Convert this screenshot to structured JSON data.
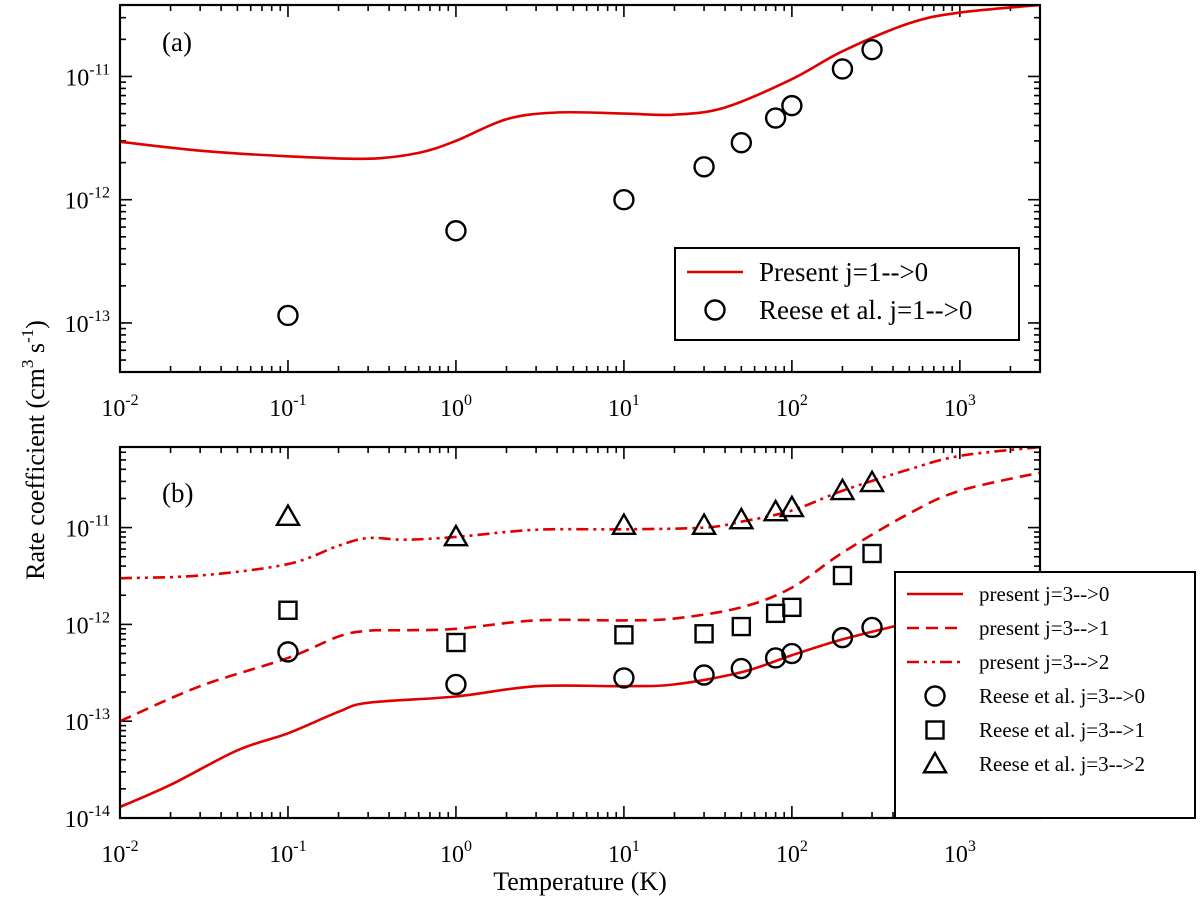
{
  "figure": {
    "ylabel": "Rate coefficient (cm",
    "ylabel_sup": "3",
    "ylabel_mid": " s",
    "ylabel_sup2": "-1",
    "ylabel_end": ")",
    "xlabel": "Temperature (K)"
  },
  "chart_data": [
    {
      "type": "line",
      "panel_label": "(a)",
      "x_scale": "log",
      "y_scale": "log",
      "xlim": [
        0.01,
        3000
      ],
      "ylim": [
        4e-14,
        3.8e-11
      ],
      "x_ticks": [
        {
          "value": 0.01,
          "base": "10",
          "exp": "-2"
        },
        {
          "value": 0.1,
          "base": "10",
          "exp": "-1"
        },
        {
          "value": 1,
          "base": "10",
          "exp": "0"
        },
        {
          "value": 10,
          "base": "10",
          "exp": "1"
        },
        {
          "value": 100,
          "base": "10",
          "exp": "2"
        },
        {
          "value": 1000,
          "base": "10",
          "exp": "3"
        }
      ],
      "y_ticks": [
        {
          "value": 1e-13,
          "base": "10",
          "exp": "-13"
        },
        {
          "value": 1e-12,
          "base": "10",
          "exp": "-12"
        },
        {
          "value": 1e-11,
          "base": "10",
          "exp": "-11"
        }
      ],
      "legend_position": "bottom-right",
      "series": [
        {
          "name": "Present j=1-->0",
          "style": "solid",
          "color": "#e00000",
          "x": [
            0.01,
            0.03,
            0.1,
            0.3,
            0.6,
            1,
            2,
            4,
            10,
            20,
            40,
            100,
            200,
            500,
            1000,
            3000
          ],
          "y": [
            2.95e-12,
            2.5e-12,
            2.25e-12,
            2.15e-12,
            2.4e-12,
            3e-12,
            4.5e-12,
            5.1e-12,
            5e-12,
            4.9e-12,
            5.6e-12,
            9.5e-12,
            1.6e-11,
            2.7e-11,
            3.3e-11,
            3.8e-11
          ]
        },
        {
          "name": "Reese et al. j=1-->0",
          "marker": "circle",
          "x": [
            0.1,
            1,
            10,
            30,
            50,
            80,
            100,
            200,
            300
          ],
          "y": [
            1.15e-13,
            5.6e-13,
            1e-12,
            1.85e-12,
            2.9e-12,
            4.6e-12,
            5.8e-12,
            1.15e-11,
            1.65e-11
          ]
        }
      ]
    },
    {
      "type": "line",
      "panel_label": "(b)",
      "x_scale": "log",
      "y_scale": "log",
      "xlim": [
        0.01,
        3000
      ],
      "ylim": [
        1e-14,
        6.8e-11
      ],
      "x_ticks": [
        {
          "value": 0.01,
          "base": "10",
          "exp": "-2"
        },
        {
          "value": 0.1,
          "base": "10",
          "exp": "-1"
        },
        {
          "value": 1,
          "base": "10",
          "exp": "0"
        },
        {
          "value": 10,
          "base": "10",
          "exp": "1"
        },
        {
          "value": 100,
          "base": "10",
          "exp": "2"
        },
        {
          "value": 1000,
          "base": "10",
          "exp": "3"
        }
      ],
      "y_ticks": [
        {
          "value": 1e-14,
          "base": "10",
          "exp": "-14"
        },
        {
          "value": 1e-13,
          "base": "10",
          "exp": "-13"
        },
        {
          "value": 1e-12,
          "base": "10",
          "exp": "-12"
        },
        {
          "value": 1e-11,
          "base": "10",
          "exp": "-11"
        }
      ],
      "legend_position": "right",
      "series": [
        {
          "name": "present j=3-->0",
          "style": "solid",
          "color": "#e00000",
          "x": [
            0.01,
            0.02,
            0.05,
            0.1,
            0.2,
            0.3,
            1,
            3,
            10,
            20,
            50,
            100,
            200,
            500,
            1000,
            3000
          ],
          "y": [
            1.3e-14,
            2.2e-14,
            5e-14,
            7.5e-14,
            1.25e-13,
            1.55e-13,
            1.8e-13,
            2.3e-13,
            2.3e-13,
            2.4e-13,
            3.2e-13,
            4.8e-13,
            7e-13,
            1.05e-12,
            1.5e-12,
            2.5e-12
          ]
        },
        {
          "name": "present j=3-->1",
          "style": "dashed",
          "color": "#e00000",
          "x": [
            0.01,
            0.03,
            0.1,
            0.2,
            0.3,
            0.5,
            1,
            3,
            10,
            20,
            50,
            100,
            200,
            500,
            1000,
            3000
          ],
          "y": [
            1e-13,
            2.3e-13,
            4.5e-13,
            7.5e-13,
            8.6e-13,
            8.7e-13,
            9e-13,
            1.1e-12,
            1.1e-12,
            1.15e-12,
            1.5e-12,
            2.4e-12,
            5.5e-12,
            1.4e-11,
            2.4e-11,
            3.7e-11
          ]
        },
        {
          "name": "present j=3-->2",
          "style": "dash-dot-dot",
          "color": "#e00000",
          "x": [
            0.01,
            0.03,
            0.1,
            0.2,
            0.3,
            0.5,
            1,
            3,
            10,
            30,
            50,
            100,
            200,
            500,
            1000,
            3000
          ],
          "y": [
            3e-12,
            3.2e-12,
            4.2e-12,
            6.5e-12,
            7.8e-12,
            7.5e-12,
            8e-12,
            9.5e-12,
            9.6e-12,
            1e-11,
            1.15e-11,
            1.5e-11,
            2.4e-11,
            4e-11,
            5.5e-11,
            6.8e-11
          ]
        },
        {
          "name": "Reese et al. j=3-->0",
          "marker": "circle",
          "x": [
            0.1,
            1,
            10,
            30,
            50,
            80,
            100,
            200,
            300
          ],
          "y": [
            5.2e-13,
            2.4e-13,
            2.8e-13,
            3e-13,
            3.5e-13,
            4.5e-13,
            5e-13,
            7.3e-13,
            9.3e-13
          ]
        },
        {
          "name": "Reese et al. j=3-->1",
          "marker": "square",
          "x": [
            0.1,
            1,
            10,
            30,
            50,
            80,
            100,
            200,
            300
          ],
          "y": [
            1.4e-12,
            6.5e-13,
            7.8e-13,
            8e-13,
            9.5e-13,
            1.3e-12,
            1.5e-12,
            3.2e-12,
            5.4e-12
          ]
        },
        {
          "name": "Reese et al. j=3-->2",
          "marker": "triangle",
          "x": [
            0.1,
            1,
            10,
            30,
            50,
            80,
            100,
            200,
            300
          ],
          "y": [
            1.3e-11,
            8e-12,
            1.05e-11,
            1.05e-11,
            1.2e-11,
            1.45e-11,
            1.6e-11,
            2.4e-11,
            2.9e-11
          ]
        }
      ]
    }
  ]
}
